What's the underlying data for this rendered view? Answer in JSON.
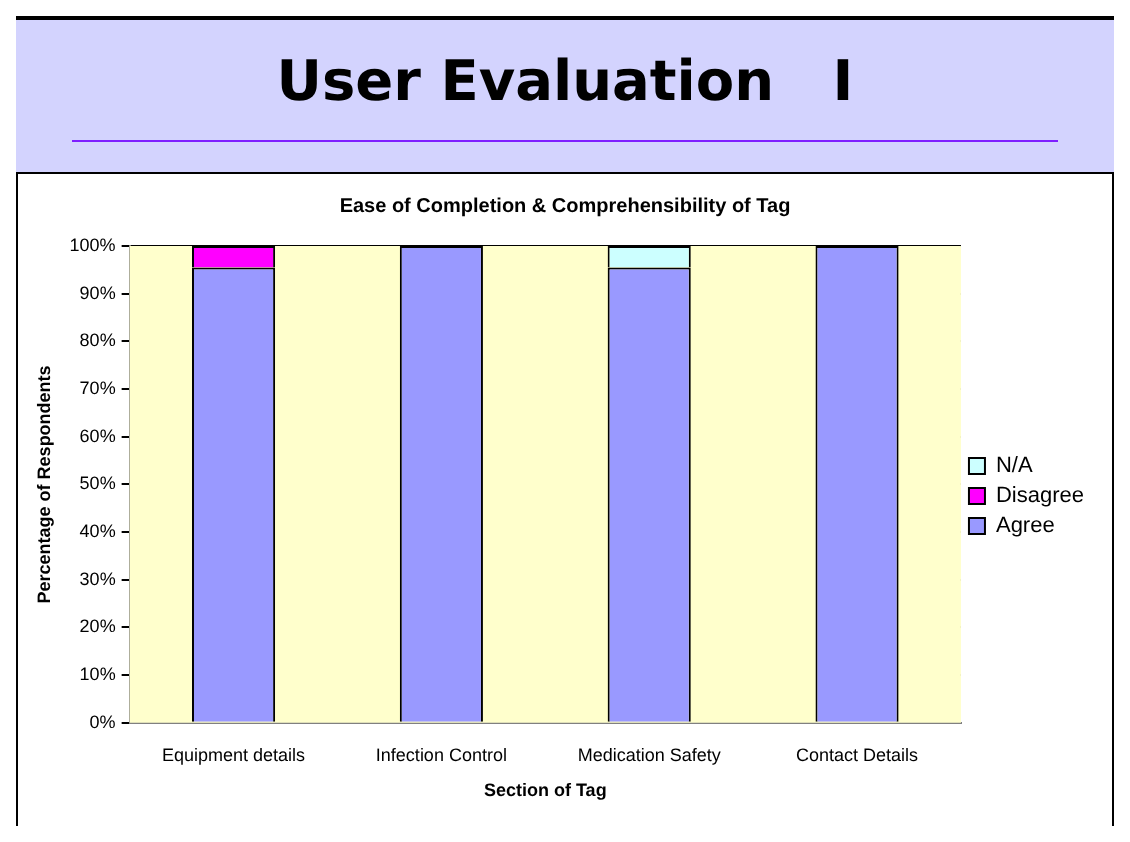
{
  "chart_data": {
    "type": "bar",
    "title": "User Evaluation   I",
    "subtitle": "Ease of Completion & Comprehensibility of Tag",
    "xlabel": "Section of Tag",
    "ylabel": "Percentage of Respondents",
    "categories": [
      "Equipment details",
      "Infection Control",
      "Medication Safety",
      "Contact Details"
    ],
    "series": [
      {
        "name": "Agree",
        "color": "#9999ff",
        "values": [
          95.5,
          100,
          95.5,
          100
        ]
      },
      {
        "name": "Disagree",
        "color": "#ff00ff",
        "values": [
          4.5,
          0,
          0,
          0
        ]
      },
      {
        "name": "N/A",
        "color": "#ccffff",
        "values": [
          0,
          0,
          4.5,
          0
        ]
      }
    ],
    "stacked": true,
    "ylim": [
      0,
      100
    ],
    "yticks": [
      {
        "value": 0,
        "label": "0%"
      },
      {
        "value": 10,
        "label": "10%"
      },
      {
        "value": 20,
        "label": "20%"
      },
      {
        "value": 30,
        "label": "30%"
      },
      {
        "value": 40,
        "label": "40%"
      },
      {
        "value": 50,
        "label": "50%"
      },
      {
        "value": 60,
        "label": "60%"
      },
      {
        "value": 70,
        "label": "70%"
      },
      {
        "value": 80,
        "label": "80%"
      },
      {
        "value": 90,
        "label": "90%"
      },
      {
        "value": 100,
        "label": "100%"
      }
    ],
    "grid": "y",
    "legend": "right"
  }
}
